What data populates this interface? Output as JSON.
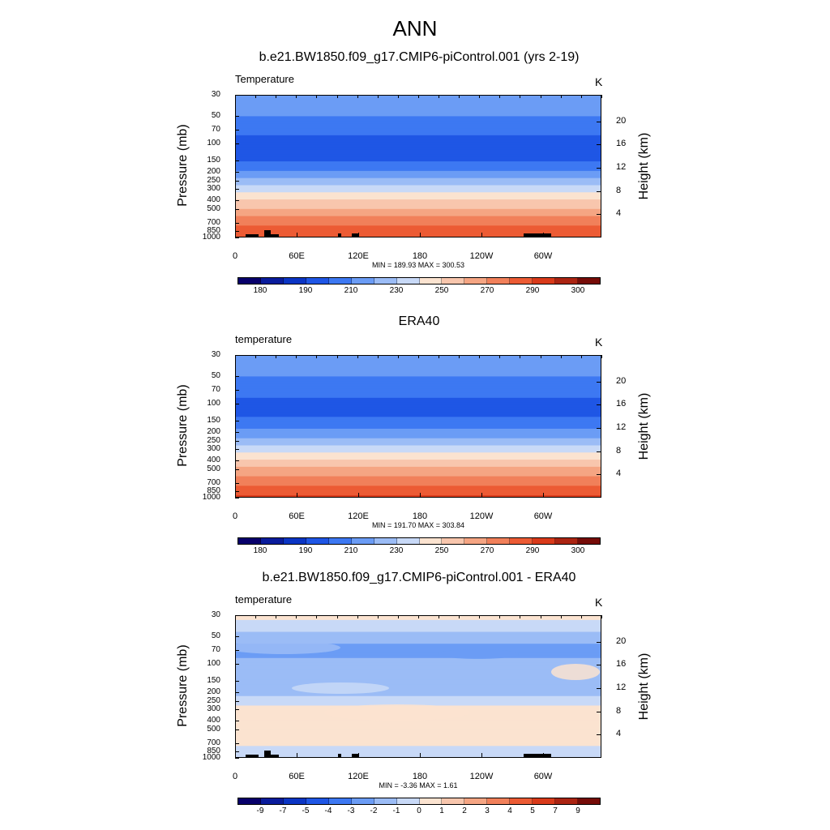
{
  "title": "ANN",
  "panels": [
    {
      "title": "b.e21.BW1850.f09_g17.CMIP6-piControl.001 (yrs 2-19)",
      "variable": "Temperature",
      "units": "K",
      "ylabel": "Pressure (mb)",
      "y2label": "Height (km)",
      "minmax": "MIN = 189.93  MAX = 300.53",
      "mode": "abs",
      "topo": true
    },
    {
      "title": "ERA40",
      "variable": "temperature",
      "units": "K",
      "ylabel": "Pressure (mb)",
      "y2label": "Height (km)",
      "minmax": "MIN = 191.70  MAX = 303.84",
      "mode": "abs",
      "topo": false
    },
    {
      "title": "b.e21.BW1850.f09_g17.CMIP6-piControl.001 - ERA40",
      "variable": "temperature",
      "units": "K",
      "ylabel": "Pressure (mb)",
      "y2label": "Height (km)",
      "minmax": "MIN =  -3.36  MAX =   1.61",
      "mode": "diff",
      "topo": true
    }
  ],
  "axes": {
    "pressure_ticks": [
      "30",
      "50",
      "70",
      "100",
      "150",
      "200",
      "250",
      "300",
      "400",
      "500",
      "700",
      "850",
      "1000"
    ],
    "height_ticks": [
      "20",
      "16",
      "12",
      "8",
      "4"
    ],
    "lon_ticks": [
      "0",
      "60E",
      "120E",
      "180",
      "120W",
      "60W"
    ]
  },
  "colorbars": {
    "abs_labels": [
      "180",
      "190",
      "210",
      "230",
      "250",
      "270",
      "290",
      "300"
    ],
    "diff_labels": [
      "-9",
      "-7",
      "-5",
      "-4",
      "-3",
      "-2",
      "-1",
      "0",
      "1",
      "2",
      "3",
      "4",
      "5",
      "7",
      "9"
    ]
  },
  "colors": {
    "scale": [
      "#08006b",
      "#0a1c9c",
      "#0b35c4",
      "#1f56e5",
      "#3d78f2",
      "#6b9cf5",
      "#9bbcf6",
      "#c8d9f7",
      "#fbe3d0",
      "#f8c6ad",
      "#f5a583",
      "#f1805a",
      "#ec5b34",
      "#d93a1a",
      "#ab2412",
      "#760c08"
    ]
  },
  "chart_data": [
    {
      "type": "heatmap",
      "title": "b.e21.BW1850.f09_g17.CMIP6-piControl.001 (yrs 2-19)",
      "ylabel": "Pressure (mb)",
      "y2label": "Height (km)",
      "units": "K",
      "levels": [
        180,
        190,
        210,
        230,
        250,
        270,
        290,
        300
      ],
      "pressure": [
        30,
        50,
        70,
        100,
        150,
        200,
        250,
        300,
        400,
        500,
        700,
        850,
        1000
      ],
      "temperature_profile": [
        215,
        210,
        202,
        196,
        200,
        212,
        224,
        233,
        250,
        262,
        276,
        285,
        290
      ],
      "min": 189.93,
      "max": 300.53
    },
    {
      "type": "heatmap",
      "title": "ERA40",
      "ylabel": "Pressure (mb)",
      "y2label": "Height (km)",
      "units": "K",
      "levels": [
        180,
        190,
        210,
        230,
        250,
        270,
        290,
        300
      ],
      "pressure": [
        30,
        50,
        70,
        100,
        150,
        200,
        250,
        300,
        400,
        500,
        700,
        850,
        1000
      ],
      "temperature_profile": [
        216,
        211,
        203,
        197,
        201,
        213,
        225,
        234,
        251,
        263,
        277,
        286,
        292
      ],
      "min": 191.7,
      "max": 303.84
    },
    {
      "type": "heatmap",
      "title": "b.e21.BW1850.f09_g17.CMIP6-piControl.001 - ERA40",
      "ylabel": "Pressure (mb)",
      "y2label": "Height (km)",
      "units": "K",
      "levels": [
        -9,
        -7,
        -5,
        -4,
        -3,
        -2,
        -1,
        0,
        1,
        2,
        3,
        4,
        5,
        7,
        9
      ],
      "pressure": [
        30,
        50,
        70,
        100,
        150,
        200,
        250,
        300,
        400,
        500,
        700,
        850,
        1000
      ],
      "difference_profile": [
        0.5,
        -1.5,
        -2.5,
        -1.5,
        -1.2,
        -1.3,
        -0.5,
        0.3,
        0.5,
        0.5,
        0.3,
        -0.5,
        -1.0
      ],
      "min": -3.36,
      "max": 1.61
    }
  ]
}
